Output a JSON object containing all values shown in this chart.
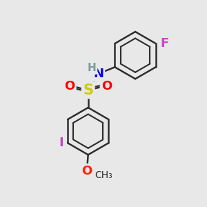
{
  "background_color": "#e8e8e8",
  "bond_color": "#2d2d2d",
  "bond_width": 1.8,
  "atom_labels": {
    "N": {
      "text": "N",
      "color": "#0000ff",
      "fontsize": 13
    },
    "H": {
      "text": "H",
      "color": "#7a9a9a",
      "fontsize": 11
    },
    "S": {
      "text": "S",
      "color": "#cccc00",
      "fontsize": 15
    },
    "O1": {
      "text": "O",
      "color": "#ff0000",
      "fontsize": 13
    },
    "O2": {
      "text": "O",
      "color": "#ff0000",
      "fontsize": 13
    },
    "O3": {
      "text": "O",
      "color": "#ff2200",
      "fontsize": 13
    },
    "I": {
      "text": "I",
      "color": "#cc44cc",
      "fontsize": 13
    },
    "F": {
      "text": "F",
      "color": "#cc44cc",
      "fontsize": 13
    }
  },
  "figsize": [
    3.0,
    3.0
  ],
  "dpi": 100
}
